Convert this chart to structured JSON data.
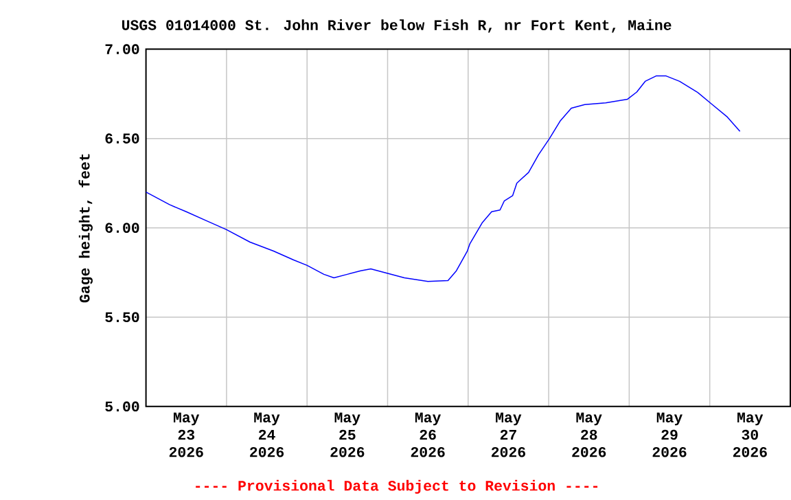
{
  "chart_data": {
    "type": "line",
    "title": "USGS 01014000 St. John River below Fish R, nr Fort Kent, Maine",
    "ylabel": "Gage height, feet",
    "annotations": [
      "---- Provisional Data Subject to Revision ----"
    ],
    "x": [
      "2026-05-23T00:00",
      "2026-05-23T07:00",
      "2026-05-23T12:00",
      "2026-05-23T18:00",
      "2026-05-24T00:00",
      "2026-05-24T07:00",
      "2026-05-24T14:00",
      "2026-05-24T20:00",
      "2026-05-25T00:00",
      "2026-05-25T05:00",
      "2026-05-25T08:00",
      "2026-05-25T12:00",
      "2026-05-25T16:00",
      "2026-05-25T19:00",
      "2026-05-26T00:00",
      "2026-05-26T05:00",
      "2026-05-26T12:00",
      "2026-05-26T18:00",
      "2026-05-26T20:30",
      "2026-05-26T23:45",
      "2026-05-27T00:30",
      "2026-05-27T04:15",
      "2026-05-27T07:00",
      "2026-05-27T09:30",
      "2026-05-27T10:45",
      "2026-05-27T13:15",
      "2026-05-27T14:30",
      "2026-05-27T18:00",
      "2026-05-27T21:00",
      "2026-05-28T00:15",
      "2026-05-28T03:30",
      "2026-05-28T06:45",
      "2026-05-28T10:45",
      "2026-05-28T17:00",
      "2026-05-28T23:30",
      "2026-05-29T02:15",
      "2026-05-29T04:45",
      "2026-05-29T08:00",
      "2026-05-29T11:00",
      "2026-05-29T15:00",
      "2026-05-29T20:15",
      "2026-05-30T00:45",
      "2026-05-30T05:15",
      "2026-05-30T09:00"
    ],
    "values": [
      6.2,
      6.13,
      6.09,
      6.04,
      5.99,
      5.92,
      5.87,
      5.82,
      5.79,
      5.74,
      5.72,
      5.74,
      5.76,
      5.77,
      5.745,
      5.72,
      5.7,
      5.705,
      5.76,
      5.87,
      5.91,
      6.03,
      6.09,
      6.1,
      6.15,
      6.18,
      6.25,
      6.31,
      6.41,
      6.5,
      6.6,
      6.67,
      6.69,
      6.7,
      6.72,
      6.76,
      6.82,
      6.85,
      6.85,
      6.82,
      6.76,
      6.69,
      6.62,
      6.54
    ],
    "color": "#0000ff",
    "xlim": [
      "2026-05-23T00:00",
      "2026-05-31T00:00"
    ],
    "xticks": [
      {
        "value": "2026-05-23T12:00",
        "label": "May 23 2026"
      },
      {
        "value": "2026-05-24T12:00",
        "label": "May 24 2026"
      },
      {
        "value": "2026-05-25T12:00",
        "label": "May 25 2026"
      },
      {
        "value": "2026-05-26T12:00",
        "label": "May 26 2026"
      },
      {
        "value": "2026-05-27T12:00",
        "label": "May 27 2026"
      },
      {
        "value": "2026-05-28T12:00",
        "label": "May 28 2026"
      },
      {
        "value": "2026-05-29T12:00",
        "label": "May 29 2026"
      },
      {
        "value": "2026-05-30T12:00",
        "label": "May 30 2026"
      },
      {
        "value": "2026-05-24T00:00",
        "label": null
      },
      {
        "value": "2026-05-25T00:00",
        "label": null
      },
      {
        "value": "2026-05-26T00:00",
        "label": null
      },
      {
        "value": "2026-05-27T00:00",
        "label": null
      },
      {
        "value": "2026-05-28T00:00",
        "label": null
      },
      {
        "value": "2026-05-29T00:00",
        "label": null
      },
      {
        "value": "2026-05-30T00:00",
        "label": null
      }
    ],
    "ylim": [
      5.0,
      7.0
    ],
    "yticks": [
      {
        "value": 5.0,
        "label": "5.00"
      },
      {
        "value": 5.5,
        "label": "5.50"
      },
      {
        "value": 6.0,
        "label": "6.00"
      },
      {
        "value": 6.5,
        "label": "6.50"
      },
      {
        "value": 7.0,
        "label": "7.00"
      }
    ],
    "grid": true
  }
}
